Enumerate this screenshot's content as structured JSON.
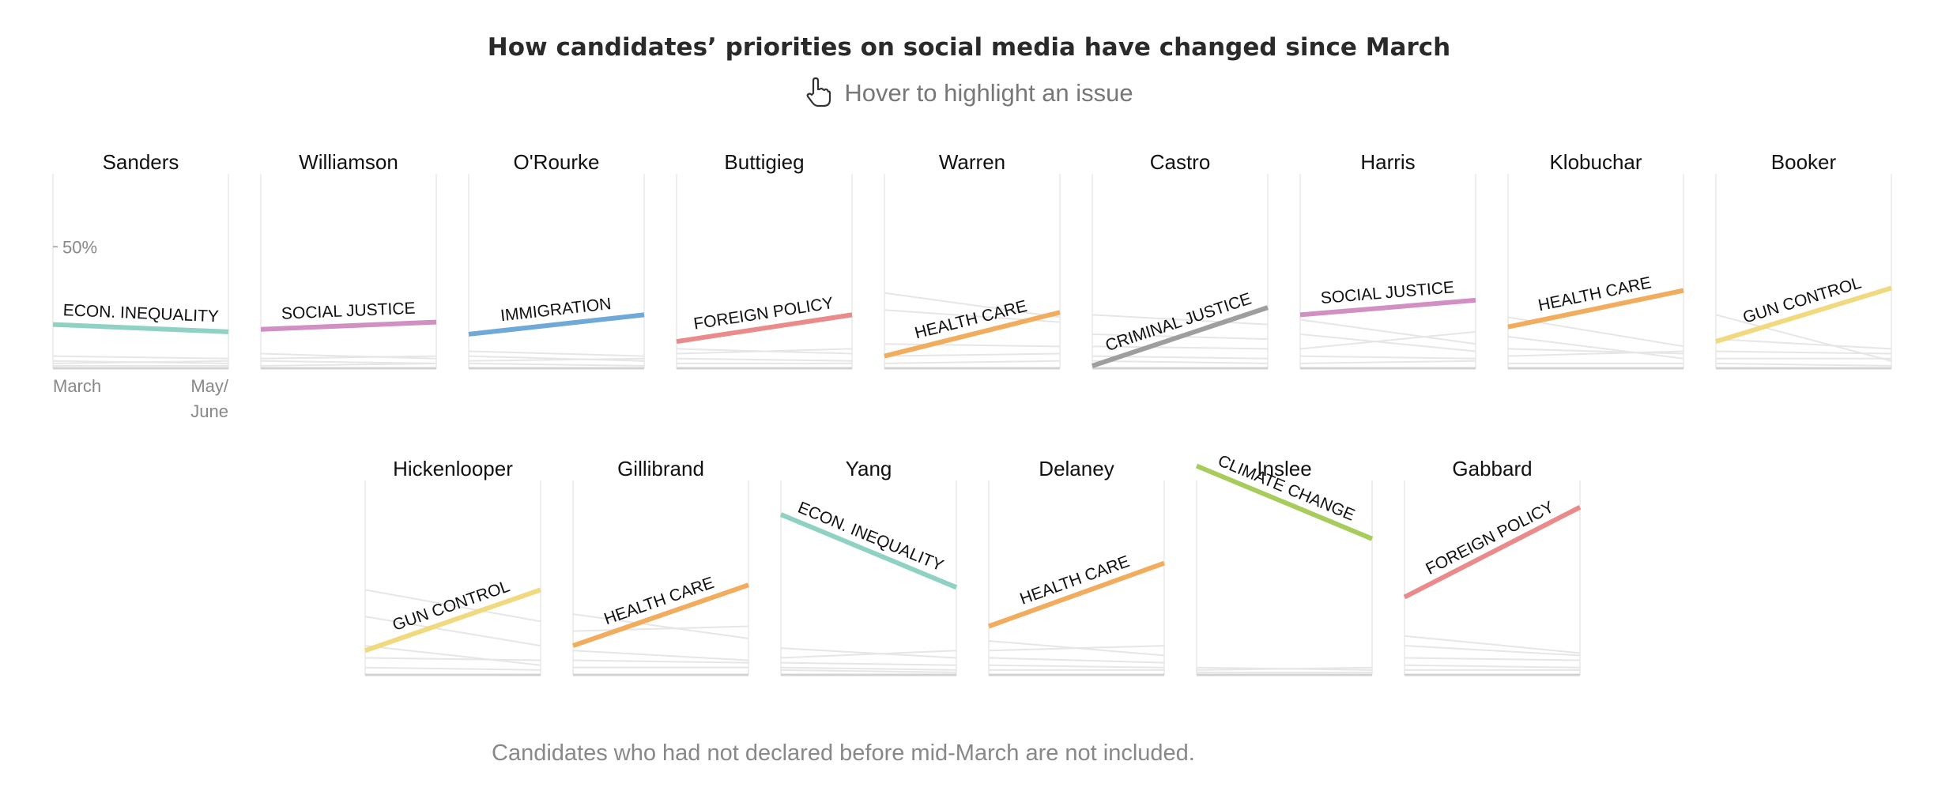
{
  "title": "How candidates’ priorities on social media have changed since March",
  "subtitle": "Hover to highlight an issue",
  "hand_icon": "pointer-hand-icon",
  "note": "Candidates who had not declared before mid-March are not included.",
  "axis": {
    "y_tick": "50%",
    "x_start": "March",
    "x_end_line1": "May/",
    "x_end_line2": "June"
  },
  "colors": {
    "econ_inequality": "#8fd2c4",
    "social_justice": "#d18fc4",
    "immigration": "#6fa9d8",
    "foreign_policy": "#ea8a8a",
    "health_care": "#f2ac5e",
    "criminal_justice": "#9e9e9e",
    "gun_control": "#f0d97e",
    "climate_change": "#a8cc5b",
    "background_lines": "#e6e6e6",
    "frame": "#e8e8e8",
    "baseline": "#d2d2d2"
  },
  "chart_data": {
    "type": "line",
    "x": [
      "March",
      "May/June"
    ],
    "ylim": [
      0,
      80
    ],
    "y_tick_label": "50%",
    "panels": [
      {
        "candidate": "Sanders",
        "issue": "ECON. INEQUALITY",
        "color_key": "econ_inequality",
        "values": [
          18,
          15
        ],
        "others": [
          [
            5,
            4
          ],
          [
            3,
            2
          ],
          [
            2,
            3
          ],
          [
            1,
            1
          ]
        ]
      },
      {
        "candidate": "Williamson",
        "issue": "SOCIAL JUSTICE",
        "color_key": "social_justice",
        "values": [
          16,
          19
        ],
        "others": [
          [
            6,
            4
          ],
          [
            4,
            5
          ],
          [
            3,
            2
          ],
          [
            1,
            2
          ]
        ]
      },
      {
        "candidate": "O'Rourke",
        "issue": "IMMIGRATION",
        "color_key": "immigration",
        "values": [
          14,
          22
        ],
        "others": [
          [
            7,
            5
          ],
          [
            5,
            3
          ],
          [
            3,
            4
          ],
          [
            2,
            1
          ]
        ]
      },
      {
        "candidate": "Buttigieg",
        "issue": "FOREIGN POLICY",
        "color_key": "foreign_policy",
        "values": [
          11,
          22
        ],
        "others": [
          [
            8,
            6
          ],
          [
            6,
            8
          ],
          [
            4,
            3
          ],
          [
            2,
            2
          ]
        ]
      },
      {
        "candidate": "Warren",
        "issue": "HEALTH CARE",
        "color_key": "health_care",
        "values": [
          5,
          23
        ],
        "others": [
          [
            31,
            21
          ],
          [
            24,
            19
          ],
          [
            10,
            9
          ],
          [
            5,
            6
          ],
          [
            2,
            3
          ]
        ]
      },
      {
        "candidate": "Castro",
        "issue": "CRIMINAL JUSTICE",
        "color_key": "criminal_justice",
        "values": [
          1,
          25
        ],
        "others": [
          [
            22,
            18
          ],
          [
            14,
            12
          ],
          [
            9,
            8
          ],
          [
            5,
            4
          ],
          [
            3,
            2
          ]
        ]
      },
      {
        "candidate": "Harris",
        "issue": "SOCIAL JUSTICE",
        "color_key": "social_justice",
        "values": [
          22,
          28
        ],
        "others": [
          [
            20,
            10
          ],
          [
            14,
            7
          ],
          [
            8,
            15
          ],
          [
            5,
            4
          ],
          [
            2,
            3
          ]
        ]
      },
      {
        "candidate": "Klobuchar",
        "issue": "HEALTH CARE",
        "color_key": "health_care",
        "values": [
          17,
          32
        ],
        "others": [
          [
            21,
            9
          ],
          [
            13,
            4
          ],
          [
            8,
            6
          ],
          [
            5,
            7
          ],
          [
            2,
            2
          ]
        ]
      },
      {
        "candidate": "Booker",
        "issue": "GUN CONTROL",
        "color_key": "gun_control",
        "values": [
          11,
          33
        ],
        "others": [
          [
            22,
            3
          ],
          [
            12,
            8
          ],
          [
            7,
            6
          ],
          [
            4,
            4
          ],
          [
            2,
            1
          ]
        ]
      },
      {
        "candidate": "Hickenlooper",
        "issue": "GUN CONTROL",
        "color_key": "gun_control",
        "values": [
          10,
          35
        ],
        "others": [
          [
            35,
            22
          ],
          [
            24,
            12
          ],
          [
            12,
            4
          ],
          [
            7,
            6
          ],
          [
            3,
            2
          ]
        ]
      },
      {
        "candidate": "Gillibrand",
        "issue": "HEALTH CARE",
        "color_key": "health_care",
        "values": [
          12,
          37
        ],
        "others": [
          [
            25,
            15
          ],
          [
            18,
            20
          ],
          [
            10,
            6
          ],
          [
            6,
            5
          ],
          [
            3,
            3
          ]
        ]
      },
      {
        "candidate": "Yang",
        "issue": "ECON. INEQUALITY",
        "color_key": "econ_inequality",
        "values": [
          66,
          36
        ],
        "others": [
          [
            11,
            7
          ],
          [
            7,
            10
          ],
          [
            5,
            4
          ],
          [
            3,
            2
          ],
          [
            2,
            1
          ]
        ]
      },
      {
        "candidate": "Delaney",
        "issue": "HEALTH CARE",
        "color_key": "health_care",
        "values": [
          20,
          46
        ],
        "others": [
          [
            14,
            8
          ],
          [
            10,
            12
          ],
          [
            7,
            5
          ],
          [
            4,
            3
          ],
          [
            2,
            2
          ]
        ]
      },
      {
        "candidate": "Inslee",
        "issue": "CLIMATE CHANGE",
        "color_key": "climate_change",
        "values": [
          86,
          56
        ],
        "others": [
          [
            3,
            2
          ],
          [
            2,
            3
          ],
          [
            1,
            1
          ]
        ]
      },
      {
        "candidate": "Gabbard",
        "issue": "FOREIGN POLICY",
        "color_key": "foreign_policy",
        "values": [
          32,
          69
        ],
        "others": [
          [
            16,
            9
          ],
          [
            12,
            8
          ],
          [
            7,
            6
          ],
          [
            4,
            3
          ],
          [
            2,
            2
          ]
        ]
      }
    ]
  }
}
